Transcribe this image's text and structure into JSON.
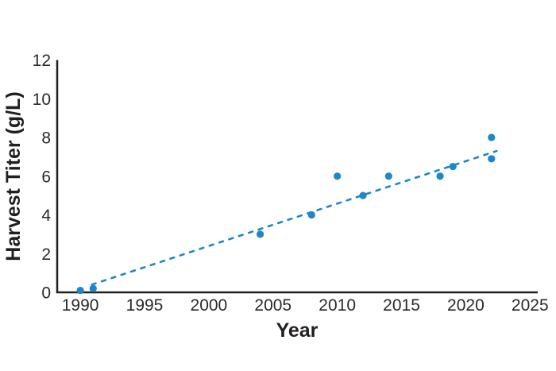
{
  "chart_data": {
    "type": "scatter",
    "title": "",
    "xlabel": "Year",
    "ylabel": "Harvest Titer (g/L)",
    "x_ticks": [
      1990,
      1995,
      2000,
      2005,
      2010,
      2015,
      2020,
      2025
    ],
    "y_ticks": [
      0,
      2,
      4,
      6,
      8,
      10,
      12
    ],
    "xlim": [
      1988.2,
      2025.6
    ],
    "ylim": [
      0,
      12
    ],
    "grid": false,
    "legend": "none",
    "points": [
      [
        1990,
        0.1
      ],
      [
        1991,
        0.2
      ],
      [
        2004,
        3.0
      ],
      [
        2008,
        4.0
      ],
      [
        2010,
        6.0
      ],
      [
        2012,
        5.0
      ],
      [
        2014,
        6.0
      ],
      [
        2018,
        6.0
      ],
      [
        2019,
        6.5
      ],
      [
        2022,
        8.0
      ],
      [
        2022,
        6.9
      ]
    ],
    "trend": {
      "style": "dashed",
      "x1": 1990.9,
      "y1": 0.4,
      "x2": 2022.4,
      "y2": 7.3
    },
    "colors": {
      "marker": "#1e87c8",
      "trend_line": "#1e87c8",
      "axis": "#231f20",
      "tick_text": "#2b2a29",
      "background": "#ffffff"
    }
  }
}
